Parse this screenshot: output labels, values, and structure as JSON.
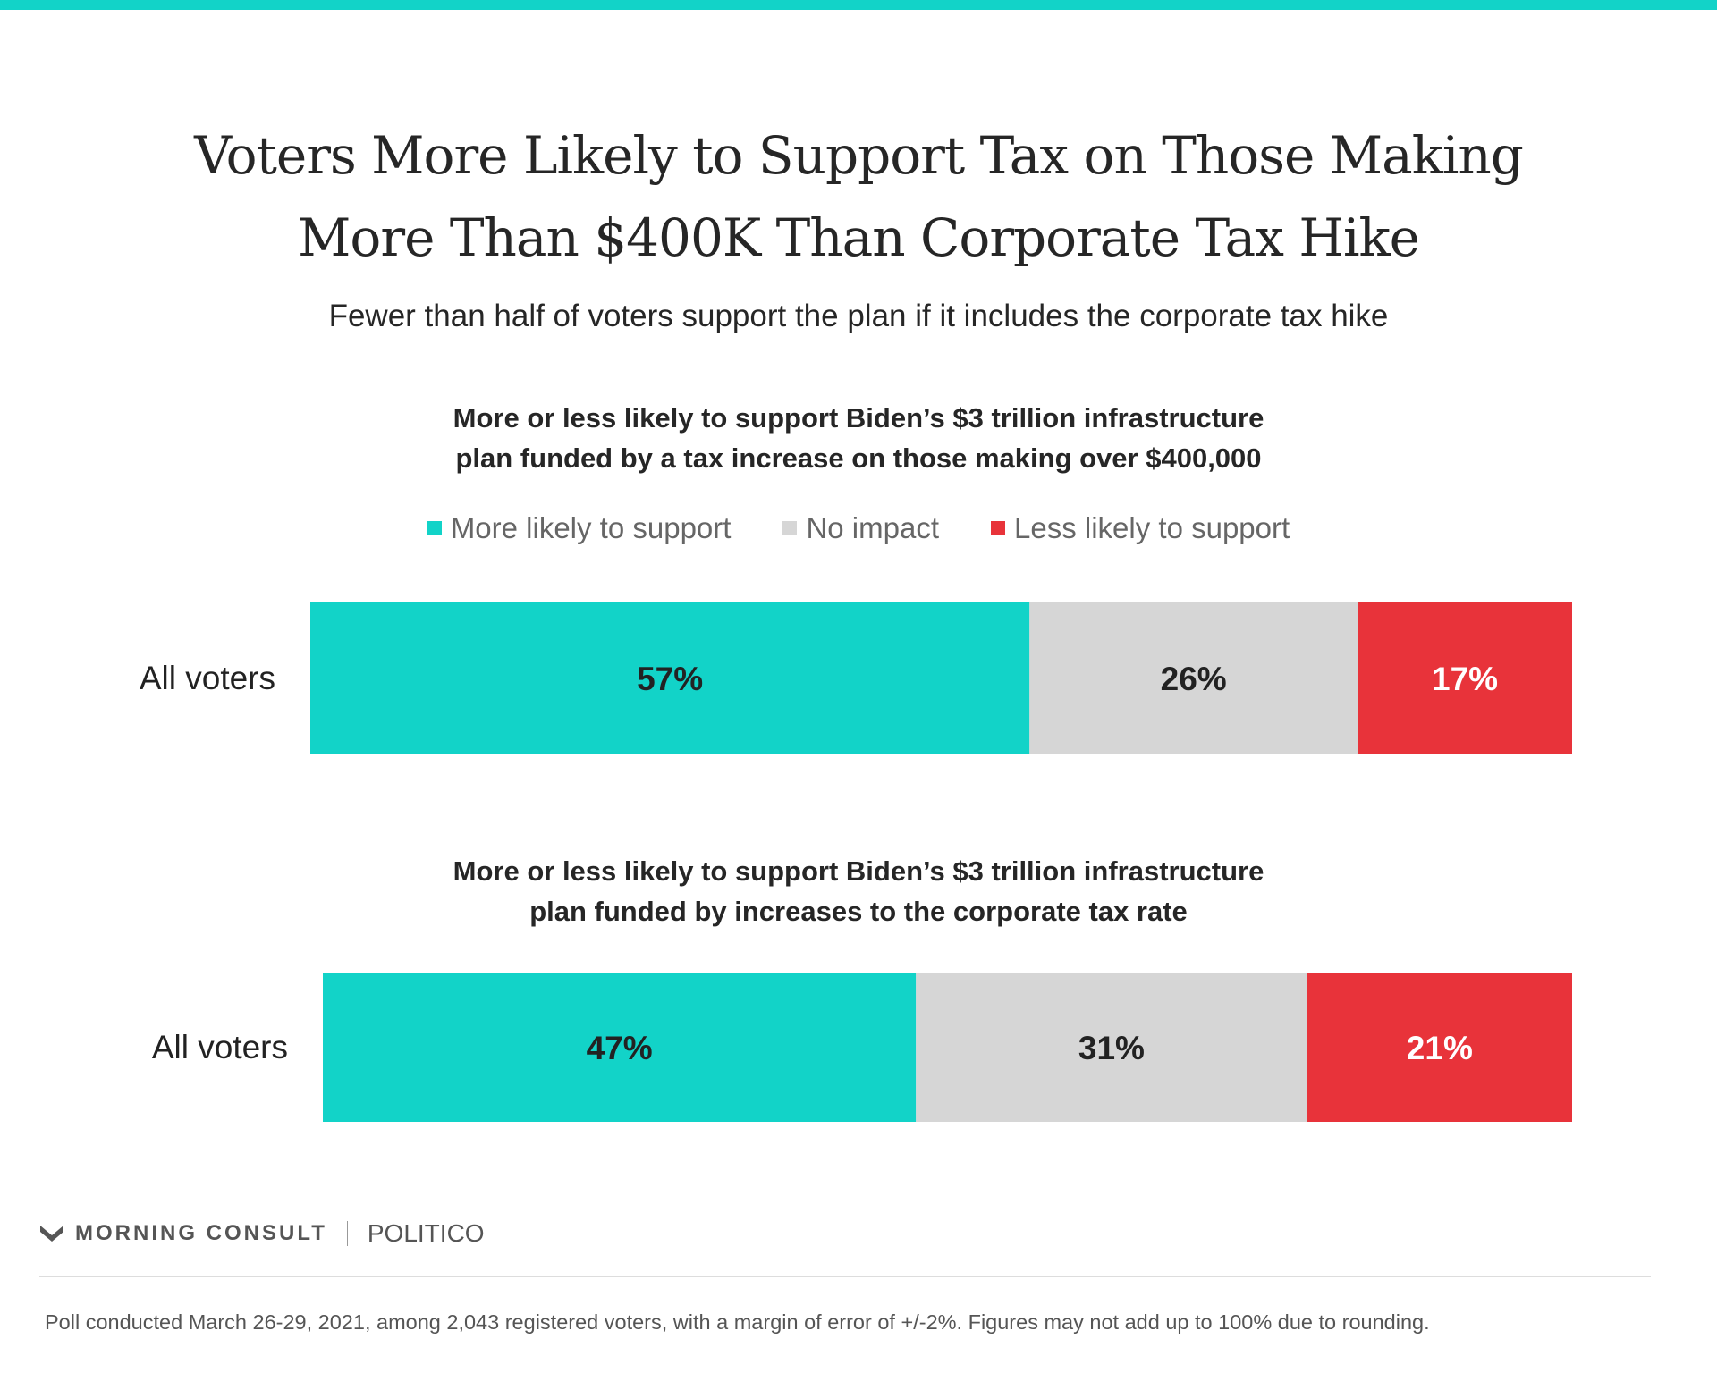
{
  "title": {
    "line1": "Voters More Likely to Support Tax on Those Making",
    "line2": "More Than $400K Than Corporate Tax Hike"
  },
  "subtitle": "Fewer than half of voters support the plan if it includes the corporate tax hike",
  "legend": [
    {
      "label": "More likely to support",
      "color": "#12d3c8"
    },
    {
      "label": "No impact",
      "color": "#d6d6d6"
    },
    {
      "label": "Less likely to support",
      "color": "#e8333a"
    }
  ],
  "chart_data": [
    {
      "type": "bar",
      "orientation": "horizontal-stacked",
      "title": "More or less likely to support Biden’s $3 trillion infrastructure plan funded by a tax increase on those making over $400,000",
      "title_lines": [
        "More or less likely to support Biden’s $3 trillion infrastructure",
        "plan funded by a tax increase on those making over $400,000"
      ],
      "categories": [
        "All voters"
      ],
      "series": [
        {
          "name": "More likely to support",
          "values": [
            57
          ],
          "label": "57%",
          "color": "#12d3c8"
        },
        {
          "name": "No impact",
          "values": [
            26
          ],
          "label": "26%",
          "color": "#d6d6d6"
        },
        {
          "name": "Less likely to support",
          "values": [
            17
          ],
          "label": "17%",
          "color": "#e8333a"
        }
      ]
    },
    {
      "type": "bar",
      "orientation": "horizontal-stacked",
      "title": "More or less likely to support Biden’s $3 trillion infrastructure plan funded by increases to the corporate tax rate",
      "title_lines": [
        "More or less likely to support Biden’s $3 trillion infrastructure",
        "plan funded by increases to the corporate tax rate"
      ],
      "categories": [
        "All voters"
      ],
      "series": [
        {
          "name": "More likely to support",
          "values": [
            47
          ],
          "label": "47%",
          "color": "#12d3c8"
        },
        {
          "name": "No impact",
          "values": [
            31
          ],
          "label": "31%",
          "color": "#d6d6d6"
        },
        {
          "name": "Less likely to support",
          "values": [
            21
          ],
          "label": "21%",
          "color": "#e8333a"
        }
      ]
    }
  ],
  "footer": {
    "brand": "MORNING CONSULT",
    "partner": "POLITICO",
    "note": "Poll conducted March 26-29, 2021, among 2,043 registered voters, with a margin of error of +/-2%. Figures may not add up to 100% due to rounding."
  }
}
